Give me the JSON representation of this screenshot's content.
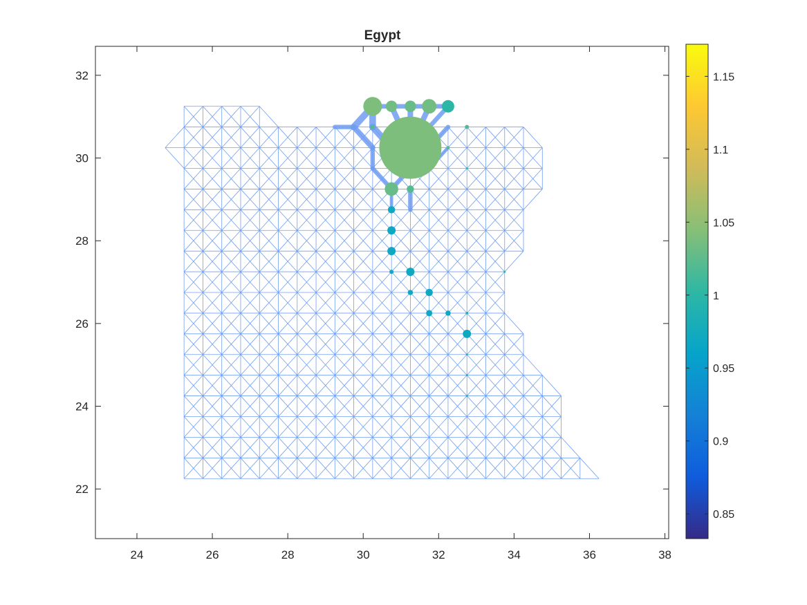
{
  "chart_data": {
    "type": "scatter",
    "title": "Egypt",
    "xlabel": "",
    "ylabel": "",
    "xlim": [
      22.9,
      38.1
    ],
    "ylim": [
      20.8,
      32.7
    ],
    "xticks": [
      24,
      26,
      28,
      30,
      32,
      34,
      36,
      38
    ],
    "yticks": [
      22,
      24,
      26,
      28,
      30,
      32
    ],
    "grid": false,
    "legend": "none",
    "network": {
      "node_spacing_deg": 0.5,
      "edge_color": "#6f9df2",
      "rows": [
        {
          "y": 31.25,
          "x_min": 25.25,
          "x_max": 27.25
        },
        {
          "y": 30.75,
          "x_min": 25.25,
          "x_max": 34.25
        },
        {
          "y": 30.25,
          "x_min": 24.75,
          "x_max": 34.75
        },
        {
          "y": 29.75,
          "x_min": 25.25,
          "x_max": 34.75
        },
        {
          "y": 29.25,
          "x_min": 25.25,
          "x_max": 34.75
        },
        {
          "y": 28.75,
          "x_min": 25.25,
          "x_max": 34.25
        },
        {
          "y": 28.25,
          "x_min": 25.25,
          "x_max": 34.25
        },
        {
          "y": 27.75,
          "x_min": 25.25,
          "x_max": 34.25
        },
        {
          "y": 27.25,
          "x_min": 25.25,
          "x_max": 33.75
        },
        {
          "y": 26.75,
          "x_min": 25.25,
          "x_max": 33.75
        },
        {
          "y": 26.25,
          "x_min": 25.25,
          "x_max": 33.75
        },
        {
          "y": 25.75,
          "x_min": 25.25,
          "x_max": 34.25
        },
        {
          "y": 25.25,
          "x_min": 25.25,
          "x_max": 34.25
        },
        {
          "y": 24.75,
          "x_min": 25.25,
          "x_max": 34.75
        },
        {
          "y": 24.25,
          "x_min": 25.25,
          "x_max": 35.25
        },
        {
          "y": 23.75,
          "x_min": 25.25,
          "x_max": 35.25
        },
        {
          "y": 23.25,
          "x_min": 25.25,
          "x_max": 35.25
        },
        {
          "y": 22.75,
          "x_min": 25.25,
          "x_max": 35.75
        },
        {
          "y": 22.25,
          "x_min": 25.25,
          "x_max": 36.25
        }
      ],
      "heavy_edges": [
        {
          "x1": 29.25,
          "y1": 30.75,
          "x2": 29.75,
          "y2": 30.75,
          "weight": 4
        },
        {
          "x1": 29.75,
          "y1": 30.75,
          "x2": 30.25,
          "y2": 31.25,
          "weight": 6
        },
        {
          "x1": 30.25,
          "y1": 31.25,
          "x2": 30.75,
          "y2": 31.25,
          "weight": 4
        },
        {
          "x1": 30.75,
          "y1": 31.25,
          "x2": 31.25,
          "y2": 31.25,
          "weight": 4
        },
        {
          "x1": 31.25,
          "y1": 31.25,
          "x2": 31.75,
          "y2": 31.25,
          "weight": 4
        },
        {
          "x1": 31.75,
          "y1": 31.25,
          "x2": 32.25,
          "y2": 31.25,
          "weight": 4
        },
        {
          "x1": 30.25,
          "y1": 31.25,
          "x2": 30.25,
          "y2": 30.75,
          "weight": 6
        },
        {
          "x1": 30.75,
          "y1": 31.25,
          "x2": 31.25,
          "y2": 30.25,
          "weight": 5
        },
        {
          "x1": 31.25,
          "y1": 31.25,
          "x2": 31.25,
          "y2": 30.25,
          "weight": 5
        },
        {
          "x1": 31.75,
          "y1": 31.25,
          "x2": 31.25,
          "y2": 30.25,
          "weight": 5
        },
        {
          "x1": 32.25,
          "y1": 31.25,
          "x2": 31.75,
          "y2": 30.75,
          "weight": 4
        },
        {
          "x1": 30.25,
          "y1": 30.75,
          "x2": 30.75,
          "y2": 30.25,
          "weight": 6
        },
        {
          "x1": 29.75,
          "y1": 30.75,
          "x2": 30.25,
          "y2": 30.25,
          "weight": 5
        },
        {
          "x1": 30.25,
          "y1": 30.25,
          "x2": 30.25,
          "y2": 29.75,
          "weight": 4
        },
        {
          "x1": 30.25,
          "y1": 29.75,
          "x2": 30.75,
          "y2": 29.25,
          "weight": 4
        },
        {
          "x1": 30.75,
          "y1": 29.25,
          "x2": 31.25,
          "y2": 29.75,
          "weight": 4
        },
        {
          "x1": 31.25,
          "y1": 29.25,
          "x2": 31.25,
          "y2": 28.75,
          "weight": 4
        },
        {
          "x1": 31.75,
          "y1": 30.25,
          "x2": 32.25,
          "y2": 30.75,
          "weight": 4
        },
        {
          "x1": 31.75,
          "y1": 29.75,
          "x2": 32.25,
          "y2": 30.25,
          "weight": 3
        },
        {
          "x1": 30.75,
          "y1": 29.25,
          "x2": 30.75,
          "y2": 28.75,
          "weight": 3
        }
      ]
    },
    "points": [
      {
        "x": 30.25,
        "y": 31.25,
        "value": 1.04,
        "size": 1.8
      },
      {
        "x": 30.75,
        "y": 31.25,
        "value": 1.035,
        "size": 1.1
      },
      {
        "x": 31.25,
        "y": 31.25,
        "value": 1.03,
        "size": 1.1
      },
      {
        "x": 31.75,
        "y": 31.25,
        "value": 1.035,
        "size": 1.4
      },
      {
        "x": 32.25,
        "y": 31.25,
        "value": 1.0,
        "size": 1.2
      },
      {
        "x": 31.25,
        "y": 30.25,
        "value": 1.04,
        "size": 6.0
      },
      {
        "x": 30.75,
        "y": 29.25,
        "value": 1.03,
        "size": 1.3
      },
      {
        "x": 31.25,
        "y": 29.25,
        "value": 1.02,
        "size": 0.7
      },
      {
        "x": 30.75,
        "y": 28.75,
        "value": 0.97,
        "size": 0.7
      },
      {
        "x": 30.75,
        "y": 28.25,
        "value": 0.97,
        "size": 0.8
      },
      {
        "x": 30.75,
        "y": 27.75,
        "value": 0.97,
        "size": 0.8
      },
      {
        "x": 30.75,
        "y": 27.25,
        "value": 0.97,
        "size": 0.4
      },
      {
        "x": 31.25,
        "y": 27.25,
        "value": 0.97,
        "size": 0.8
      },
      {
        "x": 31.25,
        "y": 26.75,
        "value": 0.97,
        "size": 0.5
      },
      {
        "x": 31.75,
        "y": 26.75,
        "value": 0.97,
        "size": 0.7
      },
      {
        "x": 31.75,
        "y": 26.25,
        "value": 0.97,
        "size": 0.6
      },
      {
        "x": 32.25,
        "y": 26.25,
        "value": 0.97,
        "size": 0.5
      },
      {
        "x": 32.75,
        "y": 26.25,
        "value": 0.99,
        "size": 0.25
      },
      {
        "x": 32.75,
        "y": 25.75,
        "value": 0.97,
        "size": 0.8
      },
      {
        "x": 32.75,
        "y": 30.75,
        "value": 1.02,
        "size": 0.4
      },
      {
        "x": 32.25,
        "y": 30.25,
        "value": 1.02,
        "size": 0.3
      },
      {
        "x": 30.25,
        "y": 30.75,
        "value": 1.02,
        "size": 0.4
      },
      {
        "x": 32.75,
        "y": 29.75,
        "value": 1.0,
        "size": 0.2
      },
      {
        "x": 33.75,
        "y": 27.25,
        "value": 0.99,
        "size": 0.15
      },
      {
        "x": 32.75,
        "y": 25.25,
        "value": 0.99,
        "size": 0.15
      },
      {
        "x": 32.75,
        "y": 24.75,
        "value": 0.99,
        "size": 0.15
      },
      {
        "x": 32.75,
        "y": 24.25,
        "value": 0.99,
        "size": 0.15
      }
    ],
    "colorbar": {
      "clim": [
        0.833,
        1.172
      ],
      "ticks": [
        0.85,
        0.9,
        0.95,
        1,
        1.05,
        1.1,
        1.15
      ],
      "tick_labels": [
        "0.85",
        "0.9",
        "0.95",
        "1",
        "1.05",
        "1.1",
        "1.15"
      ],
      "colormap": "parula",
      "colormap_stops": [
        "#352a87",
        "#0f5cdd",
        "#1481d6",
        "#06a4ca",
        "#2eb7a4",
        "#87bf77",
        "#d1bb59",
        "#fec832",
        "#f9fb0e"
      ]
    }
  }
}
